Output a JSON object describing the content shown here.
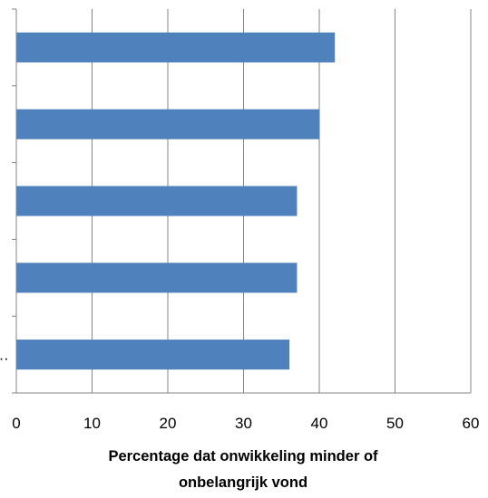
{
  "chart_data": {
    "type": "bar",
    "orientation": "horizontal",
    "categories": [
      "",
      "",
      "",
      "",
      "…"
    ],
    "values": [
      42,
      40,
      37,
      37,
      36
    ],
    "xlabel_lines": [
      "Percentage dat onwikkeling minder of",
      "onbelangrijk  vond"
    ],
    "xlim": [
      0,
      60
    ],
    "xticks": [
      "0",
      "10",
      "20",
      "30",
      "40",
      "50",
      "60"
    ],
    "grid": true,
    "legend": "none",
    "colors": {
      "bar": "#4F81BD",
      "grid": "#868686",
      "axis": "#868686"
    }
  }
}
